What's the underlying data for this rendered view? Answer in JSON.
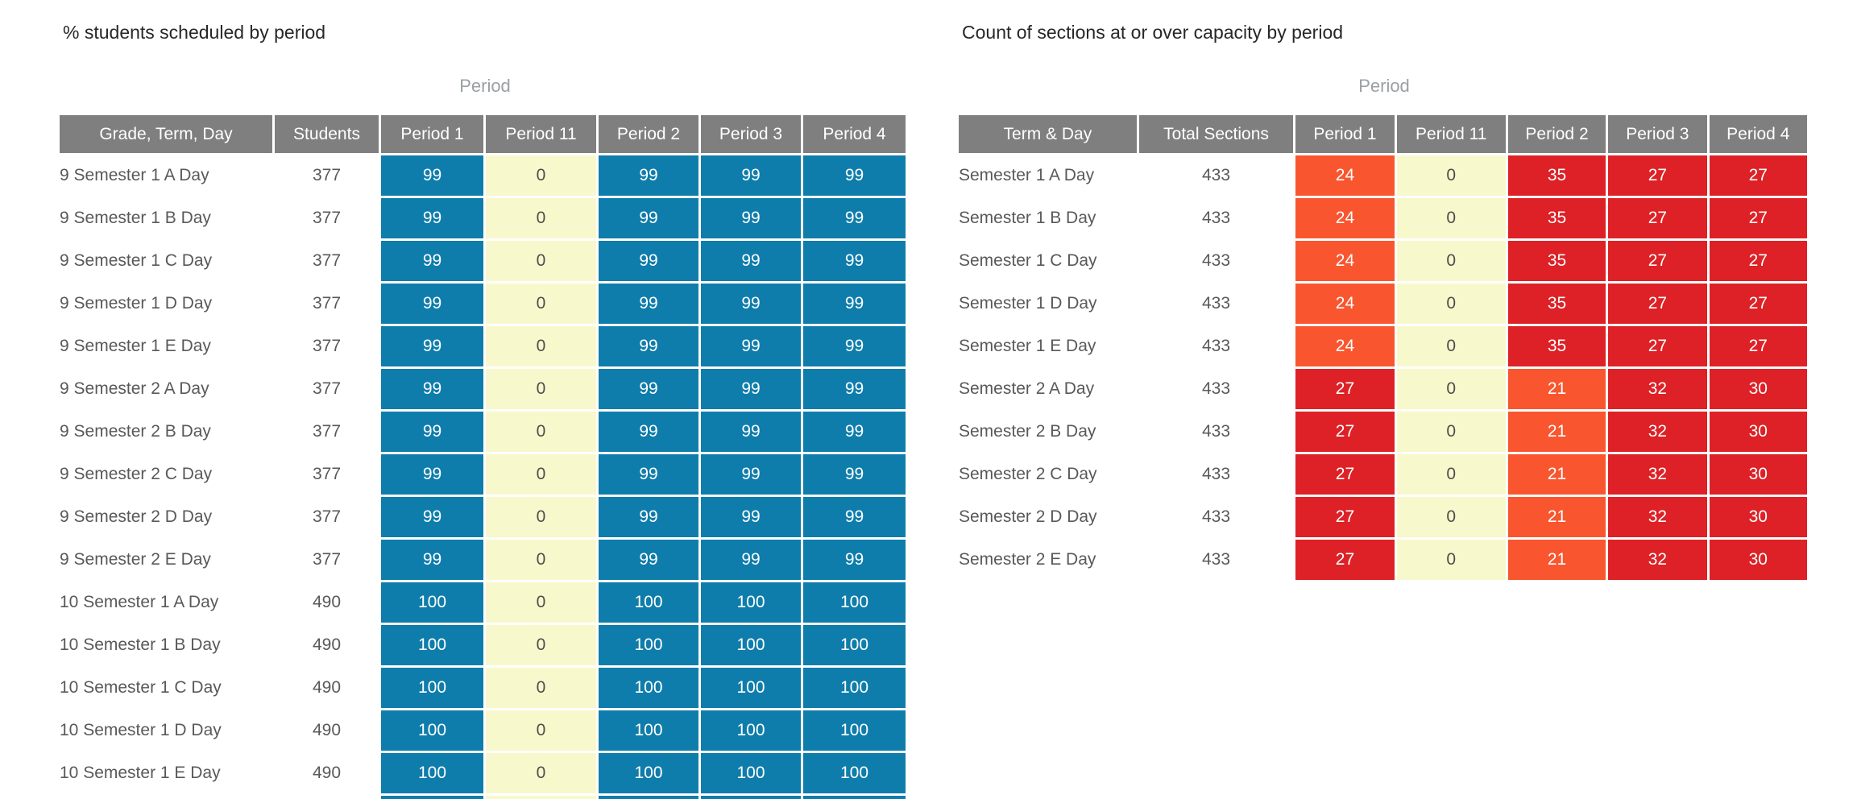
{
  "colors": {
    "header_bg": "#7f7f7f",
    "blue": "#0f7dab",
    "yellow": "#f8f8cd",
    "orange": "#f9562f",
    "red": "#dd2126",
    "title_text": "#272727",
    "group_label_text": "#9aa0a4",
    "body_text": "#58595b"
  },
  "panels": [
    {
      "title": "% students scheduled by period",
      "group_label": "Period",
      "columns": [
        "Grade, Term, Day",
        "Students",
        "Period 1",
        "Period 11",
        "Period 2",
        "Period 3",
        "Period 4"
      ],
      "rows": [
        {
          "label": "9 Semester 1 A Day",
          "value": "377",
          "cells": [
            [
              "99",
              "blue"
            ],
            [
              "0",
              "yellow"
            ],
            [
              "99",
              "blue"
            ],
            [
              "99",
              "blue"
            ],
            [
              "99",
              "blue"
            ]
          ]
        },
        {
          "label": "9 Semester 1 B Day",
          "value": "377",
          "cells": [
            [
              "99",
              "blue"
            ],
            [
              "0",
              "yellow"
            ],
            [
              "99",
              "blue"
            ],
            [
              "99",
              "blue"
            ],
            [
              "99",
              "blue"
            ]
          ]
        },
        {
          "label": "9 Semester 1 C Day",
          "value": "377",
          "cells": [
            [
              "99",
              "blue"
            ],
            [
              "0",
              "yellow"
            ],
            [
              "99",
              "blue"
            ],
            [
              "99",
              "blue"
            ],
            [
              "99",
              "blue"
            ]
          ]
        },
        {
          "label": "9 Semester 1 D Day",
          "value": "377",
          "cells": [
            [
              "99",
              "blue"
            ],
            [
              "0",
              "yellow"
            ],
            [
              "99",
              "blue"
            ],
            [
              "99",
              "blue"
            ],
            [
              "99",
              "blue"
            ]
          ]
        },
        {
          "label": "9 Semester 1 E Day",
          "value": "377",
          "cells": [
            [
              "99",
              "blue"
            ],
            [
              "0",
              "yellow"
            ],
            [
              "99",
              "blue"
            ],
            [
              "99",
              "blue"
            ],
            [
              "99",
              "blue"
            ]
          ]
        },
        {
          "label": "9 Semester 2 A Day",
          "value": "377",
          "cells": [
            [
              "99",
              "blue"
            ],
            [
              "0",
              "yellow"
            ],
            [
              "99",
              "blue"
            ],
            [
              "99",
              "blue"
            ],
            [
              "99",
              "blue"
            ]
          ]
        },
        {
          "label": "9 Semester 2 B Day",
          "value": "377",
          "cells": [
            [
              "99",
              "blue"
            ],
            [
              "0",
              "yellow"
            ],
            [
              "99",
              "blue"
            ],
            [
              "99",
              "blue"
            ],
            [
              "99",
              "blue"
            ]
          ]
        },
        {
          "label": "9 Semester 2 C Day",
          "value": "377",
          "cells": [
            [
              "99",
              "blue"
            ],
            [
              "0",
              "yellow"
            ],
            [
              "99",
              "blue"
            ],
            [
              "99",
              "blue"
            ],
            [
              "99",
              "blue"
            ]
          ]
        },
        {
          "label": "9 Semester 2 D Day",
          "value": "377",
          "cells": [
            [
              "99",
              "blue"
            ],
            [
              "0",
              "yellow"
            ],
            [
              "99",
              "blue"
            ],
            [
              "99",
              "blue"
            ],
            [
              "99",
              "blue"
            ]
          ]
        },
        {
          "label": "9 Semester 2 E Day",
          "value": "377",
          "cells": [
            [
              "99",
              "blue"
            ],
            [
              "0",
              "yellow"
            ],
            [
              "99",
              "blue"
            ],
            [
              "99",
              "blue"
            ],
            [
              "99",
              "blue"
            ]
          ]
        },
        {
          "label": "10 Semester 1 A Day",
          "value": "490",
          "cells": [
            [
              "100",
              "blue"
            ],
            [
              "0",
              "yellow"
            ],
            [
              "100",
              "blue"
            ],
            [
              "100",
              "blue"
            ],
            [
              "100",
              "blue"
            ]
          ]
        },
        {
          "label": "10 Semester 1 B Day",
          "value": "490",
          "cells": [
            [
              "100",
              "blue"
            ],
            [
              "0",
              "yellow"
            ],
            [
              "100",
              "blue"
            ],
            [
              "100",
              "blue"
            ],
            [
              "100",
              "blue"
            ]
          ]
        },
        {
          "label": "10 Semester 1 C Day",
          "value": "490",
          "cells": [
            [
              "100",
              "blue"
            ],
            [
              "0",
              "yellow"
            ],
            [
              "100",
              "blue"
            ],
            [
              "100",
              "blue"
            ],
            [
              "100",
              "blue"
            ]
          ]
        },
        {
          "label": "10 Semester 1 D Day",
          "value": "490",
          "cells": [
            [
              "100",
              "blue"
            ],
            [
              "0",
              "yellow"
            ],
            [
              "100",
              "blue"
            ],
            [
              "100",
              "blue"
            ],
            [
              "100",
              "blue"
            ]
          ]
        },
        {
          "label": "10 Semester 1 E Day",
          "value": "490",
          "cells": [
            [
              "100",
              "blue"
            ],
            [
              "0",
              "yellow"
            ],
            [
              "100",
              "blue"
            ],
            [
              "100",
              "blue"
            ],
            [
              "100",
              "blue"
            ]
          ]
        },
        {
          "label": "",
          "value": "",
          "cells": [
            [
              "",
              "blue"
            ],
            [
              "",
              "yellow"
            ],
            [
              "",
              "blue"
            ],
            [
              "",
              "blue"
            ],
            [
              "",
              "blue"
            ]
          ],
          "partial": true
        }
      ]
    },
    {
      "title": "Count of sections at or over capacity by period",
      "group_label": "Period",
      "columns": [
        "Term & Day",
        "Total Sections",
        "Period 1",
        "Period 11",
        "Period 2",
        "Period 3",
        "Period 4"
      ],
      "rows": [
        {
          "label": "Semester 1 A Day",
          "value": "433",
          "cells": [
            [
              "24",
              "orange"
            ],
            [
              "0",
              "yellow"
            ],
            [
              "35",
              "red"
            ],
            [
              "27",
              "red"
            ],
            [
              "27",
              "red"
            ]
          ]
        },
        {
          "label": "Semester 1 B Day",
          "value": "433",
          "cells": [
            [
              "24",
              "orange"
            ],
            [
              "0",
              "yellow"
            ],
            [
              "35",
              "red"
            ],
            [
              "27",
              "red"
            ],
            [
              "27",
              "red"
            ]
          ]
        },
        {
          "label": "Semester 1 C Day",
          "value": "433",
          "cells": [
            [
              "24",
              "orange"
            ],
            [
              "0",
              "yellow"
            ],
            [
              "35",
              "red"
            ],
            [
              "27",
              "red"
            ],
            [
              "27",
              "red"
            ]
          ]
        },
        {
          "label": "Semester 1 D Day",
          "value": "433",
          "cells": [
            [
              "24",
              "orange"
            ],
            [
              "0",
              "yellow"
            ],
            [
              "35",
              "red"
            ],
            [
              "27",
              "red"
            ],
            [
              "27",
              "red"
            ]
          ]
        },
        {
          "label": "Semester 1 E Day",
          "value": "433",
          "cells": [
            [
              "24",
              "orange"
            ],
            [
              "0",
              "yellow"
            ],
            [
              "35",
              "red"
            ],
            [
              "27",
              "red"
            ],
            [
              "27",
              "red"
            ]
          ]
        },
        {
          "label": "Semester 2 A Day",
          "value": "433",
          "cells": [
            [
              "27",
              "red"
            ],
            [
              "0",
              "yellow"
            ],
            [
              "21",
              "orange"
            ],
            [
              "32",
              "red"
            ],
            [
              "30",
              "red"
            ]
          ]
        },
        {
          "label": "Semester 2 B Day",
          "value": "433",
          "cells": [
            [
              "27",
              "red"
            ],
            [
              "0",
              "yellow"
            ],
            [
              "21",
              "orange"
            ],
            [
              "32",
              "red"
            ],
            [
              "30",
              "red"
            ]
          ]
        },
        {
          "label": "Semester 2 C Day",
          "value": "433",
          "cells": [
            [
              "27",
              "red"
            ],
            [
              "0",
              "yellow"
            ],
            [
              "21",
              "orange"
            ],
            [
              "32",
              "red"
            ],
            [
              "30",
              "red"
            ]
          ]
        },
        {
          "label": "Semester 2 D Day",
          "value": "433",
          "cells": [
            [
              "27",
              "red"
            ],
            [
              "0",
              "yellow"
            ],
            [
              "21",
              "orange"
            ],
            [
              "32",
              "red"
            ],
            [
              "30",
              "red"
            ]
          ]
        },
        {
          "label": "Semester 2 E Day",
          "value": "433",
          "cells": [
            [
              "27",
              "red"
            ],
            [
              "0",
              "yellow"
            ],
            [
              "21",
              "orange"
            ],
            [
              "32",
              "red"
            ],
            [
              "30",
              "red"
            ]
          ]
        }
      ]
    }
  ],
  "chart_data": [
    {
      "type": "heatmap",
      "title": "% students scheduled by period",
      "group_header": "Period",
      "row_header": "Grade, Term, Day",
      "columns": [
        "Students",
        "Period 1",
        "Period 11",
        "Period 2",
        "Period 3",
        "Period 4"
      ],
      "rows": [
        [
          "9 Semester 1 A Day",
          377,
          99,
          0,
          99,
          99,
          99
        ],
        [
          "9 Semester 1 B Day",
          377,
          99,
          0,
          99,
          99,
          99
        ],
        [
          "9 Semester 1 C Day",
          377,
          99,
          0,
          99,
          99,
          99
        ],
        [
          "9 Semester 1 D Day",
          377,
          99,
          0,
          99,
          99,
          99
        ],
        [
          "9 Semester 1 E Day",
          377,
          99,
          0,
          99,
          99,
          99
        ],
        [
          "9 Semester 2 A Day",
          377,
          99,
          0,
          99,
          99,
          99
        ],
        [
          "9 Semester 2 B Day",
          377,
          99,
          0,
          99,
          99,
          99
        ],
        [
          "9 Semester 2 C Day",
          377,
          99,
          0,
          99,
          99,
          99
        ],
        [
          "9 Semester 2 D Day",
          377,
          99,
          0,
          99,
          99,
          99
        ],
        [
          "9 Semester 2 E Day",
          377,
          99,
          0,
          99,
          99,
          99
        ],
        [
          "10 Semester 1 A Day",
          490,
          100,
          0,
          100,
          100,
          100
        ],
        [
          "10 Semester 1 B Day",
          490,
          100,
          0,
          100,
          100,
          100
        ],
        [
          "10 Semester 1 C Day",
          490,
          100,
          0,
          100,
          100,
          100
        ],
        [
          "10 Semester 1 D Day",
          490,
          100,
          0,
          100,
          100,
          100
        ],
        [
          "10 Semester 1 E Day",
          490,
          100,
          0,
          100,
          100,
          100
        ]
      ],
      "layout": {
        "cell_colors": "blue for scheduled %, pale yellow for 0",
        "truncated": "a 16th row is cut off at the bottom edge of the viewport"
      }
    },
    {
      "type": "heatmap",
      "title": "Count of sections at or over capacity by period",
      "group_header": "Period",
      "row_header": "Term & Day",
      "columns": [
        "Total Sections",
        "Period 1",
        "Period 11",
        "Period 2",
        "Period 3",
        "Period 4"
      ],
      "rows": [
        [
          "Semester 1 A Day",
          433,
          24,
          0,
          35,
          27,
          27
        ],
        [
          "Semester 1 B Day",
          433,
          24,
          0,
          35,
          27,
          27
        ],
        [
          "Semester 1 C Day",
          433,
          24,
          0,
          35,
          27,
          27
        ],
        [
          "Semester 1 D Day",
          433,
          24,
          0,
          35,
          27,
          27
        ],
        [
          "Semester 1 E Day",
          433,
          24,
          0,
          35,
          27,
          27
        ],
        [
          "Semester 2 A Day",
          433,
          27,
          0,
          21,
          32,
          30
        ],
        [
          "Semester 2 B Day",
          433,
          27,
          0,
          21,
          32,
          30
        ],
        [
          "Semester 2 C Day",
          433,
          27,
          0,
          21,
          32,
          30
        ],
        [
          "Semester 2 D Day",
          433,
          27,
          0,
          21,
          32,
          30
        ],
        [
          "Semester 2 E Day",
          433,
          27,
          0,
          21,
          32,
          30
        ]
      ],
      "layout": {
        "cell_colors": "red/orange heat scale for counts, pale yellow for 0"
      }
    }
  ]
}
